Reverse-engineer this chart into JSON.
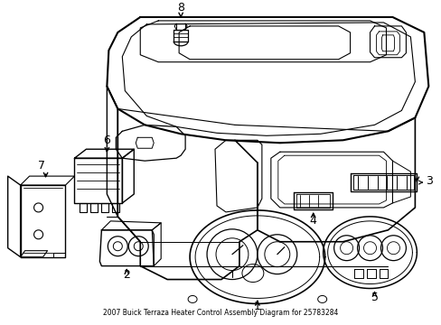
{
  "title": "2007 Buick Terraza Heater Control Assembly Diagram for 25783284",
  "background_color": "#ffffff",
  "line_color": "#000000",
  "figsize": [
    4.89,
    3.6
  ],
  "dpi": 100
}
